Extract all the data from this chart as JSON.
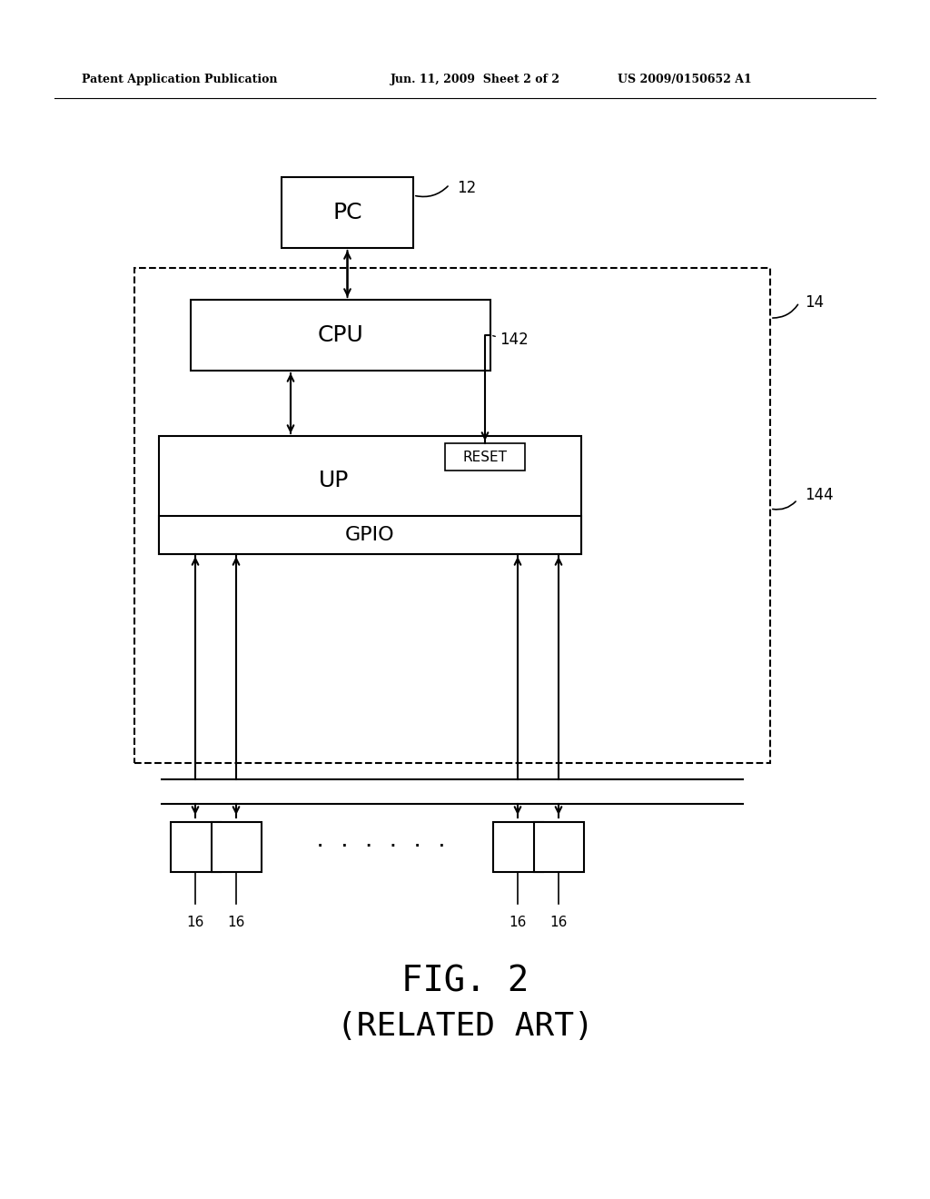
{
  "background_color": "#ffffff",
  "header_left": "Patent Application Publication",
  "header_center": "Jun. 11, 2009  Sheet 2 of 2",
  "header_right": "US 2009/0150652 A1",
  "fig_label": "FIG. 2",
  "fig_sublabel": "(RELATED ART)",
  "pc_label": "PC",
  "pc_ref": "12",
  "cpu_label": "CPU",
  "cpu_ref": "142",
  "up_label": "UP",
  "gpio_label": "GPIO",
  "reset_label": "RESET",
  "mcu_ref": "144",
  "dashed_ref": "14",
  "node_ref": "16",
  "dots": "· · · · · ·"
}
